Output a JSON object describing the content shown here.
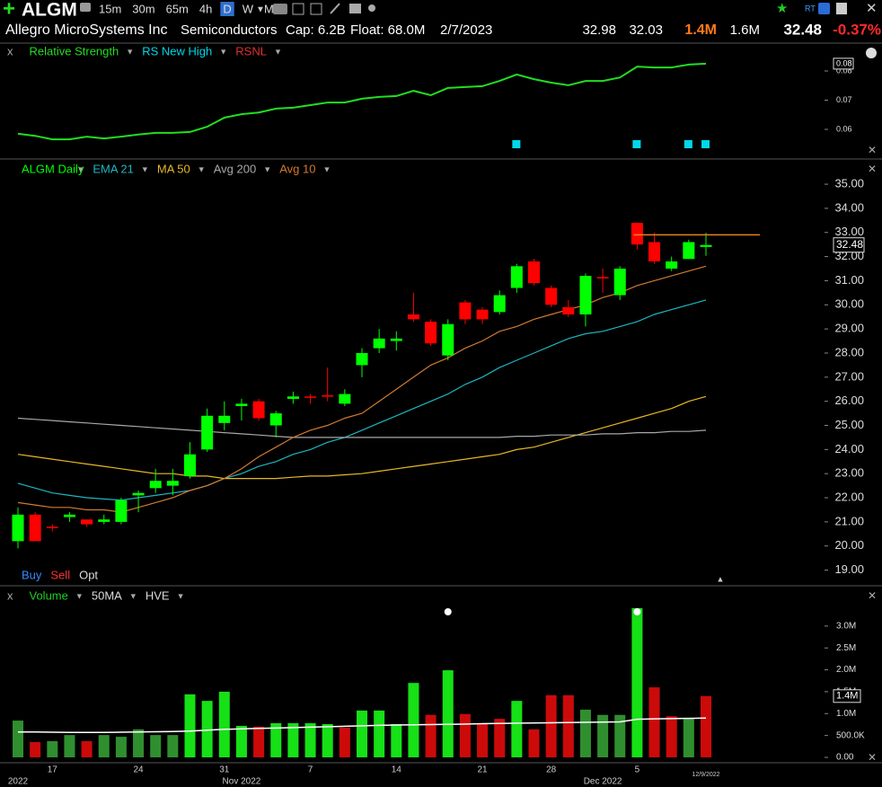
{
  "header": {
    "symbol": "ALGM",
    "timeframes": [
      "15m",
      "30m",
      "65m",
      "4h",
      "D",
      "W",
      "M"
    ],
    "active_timeframe": "D",
    "company": "Allegro MicroSystems Inc",
    "industry": "Semiconductors",
    "cap": "Cap: 6.2B",
    "float": "Float: 68.0M",
    "date": "2/7/2023",
    "high": 32.98,
    "low": 32.03,
    "volume": "1.4M",
    "avg_volume": "1.6M",
    "last": 32.48,
    "change": "-0.37%"
  },
  "chart_data": [
    {
      "type": "line",
      "close_label": "x",
      "series": [
        {
          "name": "Relative Strength",
          "color": "#22dd22",
          "values": [
            0.0585,
            0.0578,
            0.0566,
            0.0566,
            0.0575,
            0.0569,
            0.0575,
            0.0582,
            0.0588,
            0.0588,
            0.0591,
            0.0609,
            0.064,
            0.0652,
            0.0658,
            0.0671,
            0.0674,
            0.0683,
            0.0692,
            0.0692,
            0.0705,
            0.0711,
            0.0714,
            0.0732,
            0.0717,
            0.0742,
            0.0745,
            0.0748,
            0.0766,
            0.0788,
            0.0772,
            0.076,
            0.0751,
            0.0766,
            0.0766,
            0.0778,
            0.0815,
            0.0812,
            0.0812,
            0.0822,
            0.0825
          ]
        }
      ],
      "new_high": {
        "name": "RS New High",
        "color": "#00d8e8",
        "indices": [
          29,
          36,
          39,
          40
        ]
      },
      "rsnl": {
        "name": "RSNL",
        "color": "#e03030"
      },
      "last_value_label": "0.08",
      "ylim": [
        0.052,
        0.084
      ],
      "yticks": [
        0.06,
        0.07,
        0.08
      ]
    },
    {
      "type": "candlestick",
      "name": "ALGM Daily",
      "up_color": "#00ff00",
      "down_color": "#ff0000",
      "categories": [
        null,
        null,
        "17",
        null,
        null,
        null,
        null,
        "24",
        null,
        null,
        null,
        null,
        "31",
        null,
        null,
        null,
        null,
        "7",
        null,
        null,
        null,
        null,
        "14",
        null,
        null,
        null,
        null,
        "21",
        null,
        null,
        null,
        "28",
        null,
        null,
        null,
        null,
        "5",
        null,
        null,
        null,
        null
      ],
      "month_labels": [
        "2022",
        null,
        null,
        null,
        null,
        null,
        null,
        null,
        null,
        null,
        null,
        null,
        null,
        "Nov 2022",
        null,
        null,
        null,
        null,
        null,
        null,
        null,
        null,
        null,
        null,
        null,
        null,
        null,
        null,
        null,
        null,
        null,
        null,
        null,
        null,
        "Dec 2022",
        null,
        null,
        null,
        null,
        null,
        null
      ],
      "last_date": "12/9/2022",
      "open": [
        20.2,
        21.3,
        20.8,
        21.2,
        21.1,
        21.0,
        21.0,
        22.1,
        22.4,
        22.5,
        22.9,
        24.0,
        25.1,
        25.8,
        26.0,
        25.0,
        26.1,
        26.2,
        26.25,
        25.9,
        27.5,
        28.2,
        28.5,
        29.6,
        29.3,
        27.9,
        30.1,
        29.8,
        29.7,
        30.7,
        31.8,
        30.7,
        29.9,
        29.6,
        31.15,
        30.4,
        33.4,
        32.6,
        31.5,
        31.9,
        32.4
      ],
      "high": [
        21.6,
        21.4,
        20.9,
        21.4,
        21.1,
        21.3,
        22.0,
        22.3,
        23.2,
        23.2,
        24.3,
        25.7,
        26.0,
        26.1,
        26.1,
        25.6,
        26.4,
        26.3,
        27.4,
        26.5,
        28.2,
        29.0,
        28.9,
        30.5,
        29.4,
        29.4,
        30.2,
        29.9,
        30.6,
        31.7,
        31.9,
        30.8,
        30.2,
        31.3,
        31.5,
        31.6,
        33.4,
        33.0,
        32.0,
        32.7,
        32.98
      ],
      "low": [
        19.9,
        20.2,
        20.6,
        21.0,
        20.8,
        20.9,
        20.9,
        21.4,
        22.2,
        22.1,
        22.8,
        23.9,
        24.8,
        25.2,
        25.2,
        24.5,
        25.9,
        25.9,
        26.0,
        25.8,
        27.0,
        28.0,
        28.1,
        29.3,
        28.3,
        27.7,
        29.2,
        29.2,
        29.6,
        30.5,
        30.8,
        29.9,
        29.5,
        29.1,
        30.5,
        30.2,
        32.3,
        31.7,
        31.4,
        31.9,
        32.03
      ],
      "close": [
        21.3,
        20.2,
        20.75,
        21.3,
        20.9,
        21.1,
        21.9,
        22.2,
        22.7,
        22.7,
        23.8,
        25.4,
        25.4,
        25.9,
        25.3,
        25.5,
        26.2,
        26.15,
        26.2,
        26.3,
        28.0,
        28.6,
        28.6,
        29.4,
        28.4,
        29.2,
        29.4,
        29.4,
        30.4,
        31.6,
        30.9,
        30.0,
        29.6,
        31.2,
        31.1,
        31.5,
        32.5,
        31.8,
        31.8,
        32.6,
        32.48
      ],
      "overlays": [
        {
          "name": "EMA 21",
          "color": "#1fb5c0",
          "values": [
            22.6,
            22.4,
            22.2,
            22.1,
            22.0,
            21.95,
            21.9,
            22.0,
            22.1,
            22.2,
            22.3,
            22.5,
            22.8,
            23.0,
            23.3,
            23.5,
            23.8,
            24.0,
            24.3,
            24.5,
            24.8,
            25.1,
            25.4,
            25.7,
            26.0,
            26.3,
            26.7,
            27.0,
            27.4,
            27.7,
            28.0,
            28.3,
            28.6,
            28.8,
            28.9,
            29.1,
            29.3,
            29.6,
            29.8,
            30.0,
            30.2
          ]
        },
        {
          "name": "MA 50",
          "color": "#e8b825",
          "values": [
            23.8,
            23.7,
            23.6,
            23.5,
            23.4,
            23.3,
            23.2,
            23.1,
            23.0,
            23.0,
            22.9,
            22.9,
            22.8,
            22.8,
            22.8,
            22.8,
            22.85,
            22.9,
            22.9,
            22.95,
            23.0,
            23.1,
            23.2,
            23.3,
            23.4,
            23.5,
            23.6,
            23.7,
            23.8,
            24.0,
            24.1,
            24.3,
            24.5,
            24.7,
            24.9,
            25.1,
            25.3,
            25.5,
            25.7,
            26.0,
            26.2
          ]
        },
        {
          "name": "Avg 200",
          "color": "#a8a8a8",
          "values": [
            25.3,
            25.25,
            25.2,
            25.15,
            25.1,
            25.05,
            25.0,
            24.95,
            24.9,
            24.85,
            24.8,
            24.75,
            24.7,
            24.65,
            24.6,
            24.55,
            24.5,
            24.5,
            24.5,
            24.5,
            24.5,
            24.5,
            24.5,
            24.5,
            24.5,
            24.5,
            24.5,
            24.5,
            24.5,
            24.55,
            24.55,
            24.6,
            24.6,
            24.6,
            24.65,
            24.65,
            24.7,
            24.7,
            24.75,
            24.75,
            24.8
          ]
        },
        {
          "name": "Avg 10",
          "color": "#d07a30",
          "values": [
            21.8,
            21.7,
            21.6,
            21.6,
            21.5,
            21.5,
            21.4,
            21.6,
            21.8,
            22.0,
            22.3,
            22.5,
            22.8,
            23.2,
            23.7,
            24.1,
            24.5,
            24.8,
            25.0,
            25.3,
            25.5,
            26.0,
            26.5,
            27.0,
            27.5,
            27.8,
            28.2,
            28.5,
            28.9,
            29.1,
            29.4,
            29.6,
            29.8,
            30.0,
            30.3,
            30.5,
            30.8,
            31.0,
            31.2,
            31.4,
            31.6
          ]
        }
      ],
      "pivot": {
        "value": 32.9,
        "color": "#e8801a"
      },
      "buttons": [
        "Buy",
        "Sell",
        "Opt"
      ],
      "ylim": [
        18.5,
        35.3
      ],
      "yticks": [
        {
          "value": 19,
          "label": "19.00"
        },
        {
          "value": 20,
          "label": "20.00"
        },
        {
          "value": 21,
          "label": "21.00"
        },
        {
          "value": 22,
          "label": "22.00"
        },
        {
          "value": 23,
          "label": "23.00"
        },
        {
          "value": 24,
          "label": "24.00"
        },
        {
          "value": 25,
          "label": "25.00"
        },
        {
          "value": 26,
          "label": "26.00"
        },
        {
          "value": 27,
          "label": "27.00"
        },
        {
          "value": 28,
          "label": "28.00"
        },
        {
          "value": 29,
          "label": "29.00"
        },
        {
          "value": 30,
          "label": "30.00"
        },
        {
          "value": 31,
          "label": "31.00"
        },
        {
          "value": 32,
          "label": "32.00"
        },
        {
          "value": 33,
          "label": "33.00"
        },
        {
          "value": 34,
          "label": "34.00"
        },
        {
          "value": 35,
          "label": "35.00"
        }
      ]
    },
    {
      "type": "bar",
      "close_label": "x",
      "name": "Volume",
      "name_color": "#22cc22",
      "values": [
        840000,
        350000,
        370000,
        510000,
        370000,
        510000,
        470000,
        640000,
        510000,
        510000,
        1440000,
        1290000,
        1500000,
        720000,
        700000,
        780000,
        780000,
        780000,
        760000,
        680000,
        1070000,
        1070000,
        760000,
        1700000,
        970000,
        1990000,
        990000,
        780000,
        880000,
        1290000,
        640000,
        1420000,
        1420000,
        1090000,
        970000,
        970000,
        3410000,
        1600000,
        940000,
        880000,
        1400000
      ],
      "colors": [
        "#2f8f2f",
        "#cc0a0a",
        "#2f8f2f",
        "#2f8f2f",
        "#cc0a0a",
        "#2f8f2f",
        "#2f8f2f",
        "#2f8f2f",
        "#2f8f2f",
        "#2f8f2f",
        "#16e016",
        "#16e016",
        "#16e016",
        "#16e016",
        "#cc0a0a",
        "#16e016",
        "#16e016",
        "#16e016",
        "#16e016",
        "#cc0a0a",
        "#16e016",
        "#16e016",
        "#16e016",
        "#16e016",
        "#cc0a0a",
        "#16e016",
        "#cc0a0a",
        "#cc0a0a",
        "#cc0a0a",
        "#16e016",
        "#cc0a0a",
        "#cc0a0a",
        "#cc0a0a",
        "#2f8f2f",
        "#2f8f2f",
        "#2f8f2f",
        "#16e016",
        "#cc0a0a",
        "#cc0a0a",
        "#2f8f2f",
        "#cc0a0a"
      ],
      "ma": {
        "name": "50MA",
        "color": "#ffffff",
        "values": [
          580000,
          580000,
          575000,
          570000,
          570000,
          570000,
          575000,
          580000,
          585000,
          590000,
          600000,
          620000,
          640000,
          650000,
          660000,
          670000,
          680000,
          690000,
          700000,
          710000,
          720000,
          730000,
          740000,
          745000,
          750000,
          755000,
          760000,
          770000,
          775000,
          780000,
          785000,
          790000,
          795000,
          800000,
          805000,
          810000,
          870000,
          880000,
          885000,
          890000,
          900000
        ]
      },
      "hve": "HVE",
      "event_indices": [
        25,
        36
      ],
      "ylim": [
        0,
        3500000
      ],
      "yticks": [
        {
          "value": 0,
          "label": "0.00"
        },
        {
          "value": 500000,
          "label": "500.0K"
        },
        {
          "value": 1000000,
          "label": "1.0M"
        },
        {
          "value": 1500000,
          "label": "1.5M"
        },
        {
          "value": 2000000,
          "label": "2.0M"
        },
        {
          "value": 2500000,
          "label": "2.5M"
        },
        {
          "value": 3000000,
          "label": "3.0M"
        }
      ]
    }
  ]
}
